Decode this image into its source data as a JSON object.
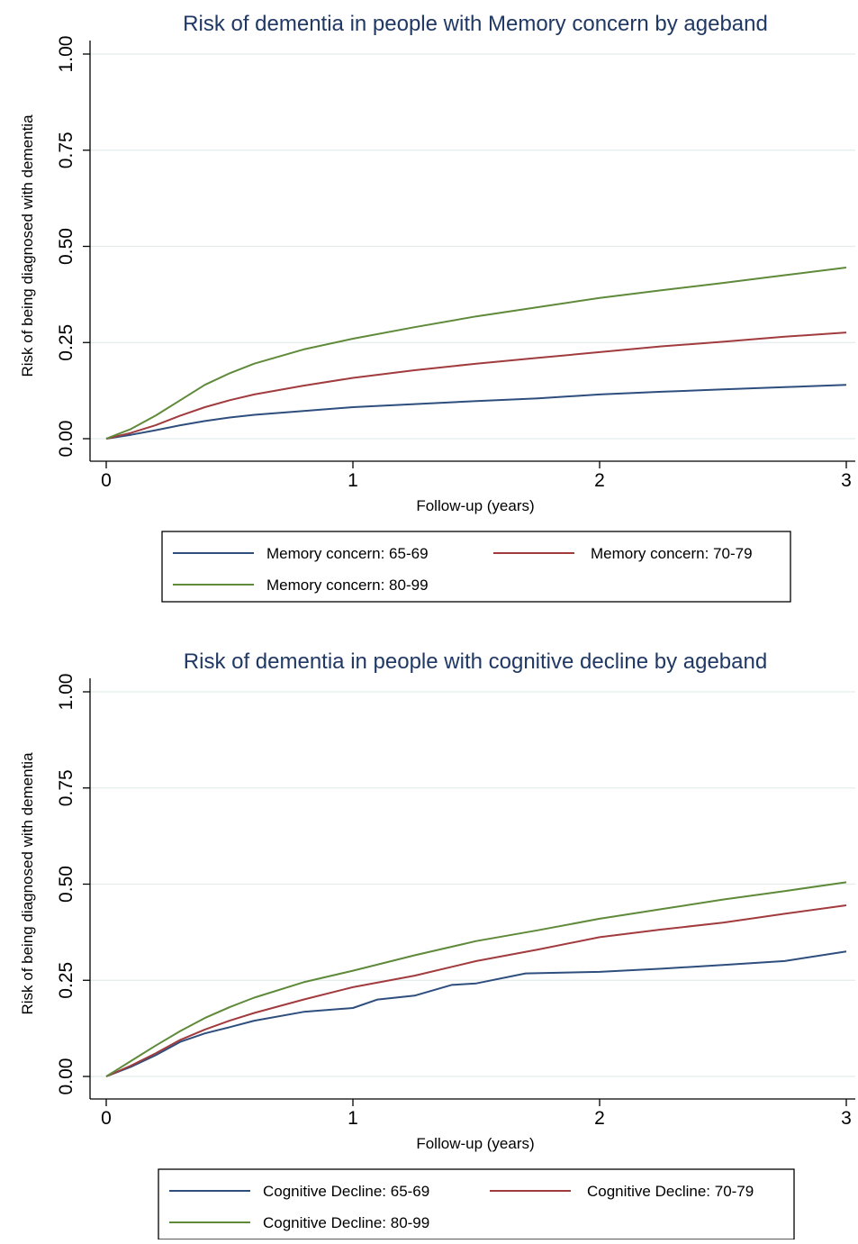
{
  "chart_data": [
    {
      "type": "line",
      "title": "Risk of dementia in people with Memory concern by ageband",
      "xlabel": "Follow-up (years)",
      "ylabel": "Risk of being diagnosed with dementia",
      "xlim": [
        0,
        3
      ],
      "ylim": [
        0,
        1
      ],
      "xticks": [
        "0",
        "1",
        "2",
        "3"
      ],
      "yticks": [
        "0.00",
        "0.25",
        "0.50",
        "0.75",
        "1.00"
      ],
      "grid": "horizontal",
      "legend": "bottom",
      "series": [
        {
          "name": "Memory concern: 65-69",
          "color": "#2e4e7e",
          "x": [
            0,
            0.1,
            0.2,
            0.3,
            0.4,
            0.5,
            0.6,
            0.8,
            1.0,
            1.25,
            1.5,
            1.75,
            2.0,
            2.25,
            2.5,
            2.75,
            3.0
          ],
          "y": [
            0,
            0.01,
            0.022,
            0.035,
            0.046,
            0.055,
            0.062,
            0.072,
            0.082,
            0.09,
            0.098,
            0.105,
            0.115,
            0.122,
            0.128,
            0.134,
            0.14
          ]
        },
        {
          "name": "Memory concern: 70-79",
          "color": "#a13b3e",
          "x": [
            0,
            0.1,
            0.2,
            0.3,
            0.4,
            0.5,
            0.6,
            0.8,
            1.0,
            1.25,
            1.5,
            1.75,
            2.0,
            2.25,
            2.5,
            2.75,
            3.0
          ],
          "y": [
            0,
            0.015,
            0.035,
            0.06,
            0.082,
            0.1,
            0.115,
            0.138,
            0.158,
            0.178,
            0.195,
            0.21,
            0.225,
            0.24,
            0.252,
            0.265,
            0.276
          ]
        },
        {
          "name": "Memory concern: 80-99",
          "color": "#5f8a3a",
          "x": [
            0,
            0.1,
            0.2,
            0.3,
            0.4,
            0.5,
            0.6,
            0.8,
            1.0,
            1.25,
            1.5,
            1.75,
            2.0,
            2.25,
            2.5,
            2.75,
            3.0
          ],
          "y": [
            0,
            0.025,
            0.06,
            0.1,
            0.14,
            0.17,
            0.195,
            0.232,
            0.26,
            0.29,
            0.318,
            0.342,
            0.366,
            0.386,
            0.405,
            0.425,
            0.445
          ]
        }
      ],
      "legend_entries": [
        "Memory concern: 65-69",
        "Memory concern: 70-79",
        "Memory concern: 80-99"
      ]
    },
    {
      "type": "line",
      "title": "Risk of dementia in people with cognitive decline by ageband",
      "xlabel": "Follow-up (years)",
      "ylabel": "Risk of being diagnosed with dementia",
      "xlim": [
        0,
        3
      ],
      "ylim": [
        0,
        1
      ],
      "xticks": [
        "0",
        "1",
        "2",
        "3"
      ],
      "yticks": [
        "0.00",
        "0.25",
        "0.50",
        "0.75",
        "1.00"
      ],
      "grid": "horizontal",
      "legend": "bottom",
      "series": [
        {
          "name": "Cognitive Decline: 65-69",
          "color": "#2e4e7e",
          "x": [
            0,
            0.1,
            0.2,
            0.3,
            0.4,
            0.5,
            0.6,
            0.8,
            1.0,
            1.1,
            1.25,
            1.4,
            1.5,
            1.7,
            2.0,
            2.25,
            2.5,
            2.75,
            3.0
          ],
          "y": [
            0,
            0.025,
            0.055,
            0.09,
            0.112,
            0.128,
            0.145,
            0.168,
            0.178,
            0.2,
            0.21,
            0.238,
            0.242,
            0.268,
            0.272,
            0.28,
            0.29,
            0.3,
            0.325
          ]
        },
        {
          "name": "Cognitive Decline: 70-79",
          "color": "#a13b3e",
          "x": [
            0,
            0.1,
            0.2,
            0.3,
            0.4,
            0.5,
            0.6,
            0.8,
            1.0,
            1.25,
            1.5,
            1.75,
            2.0,
            2.25,
            2.5,
            2.75,
            3.0
          ],
          "y": [
            0,
            0.028,
            0.06,
            0.095,
            0.122,
            0.145,
            0.165,
            0.2,
            0.232,
            0.262,
            0.3,
            0.33,
            0.362,
            0.382,
            0.4,
            0.423,
            0.445
          ]
        },
        {
          "name": "Cognitive Decline: 80-99",
          "color": "#5f8a3a",
          "x": [
            0,
            0.1,
            0.2,
            0.3,
            0.4,
            0.5,
            0.6,
            0.8,
            1.0,
            1.25,
            1.5,
            1.75,
            2.0,
            2.25,
            2.5,
            2.75,
            3.0
          ],
          "y": [
            0,
            0.04,
            0.08,
            0.118,
            0.152,
            0.18,
            0.205,
            0.245,
            0.275,
            0.315,
            0.352,
            0.38,
            0.41,
            0.435,
            0.46,
            0.482,
            0.505
          ]
        }
      ],
      "legend_entries": [
        "Cognitive Decline: 65-69",
        "Cognitive Decline: 70-79",
        "Cognitive Decline: 80-99"
      ]
    }
  ]
}
